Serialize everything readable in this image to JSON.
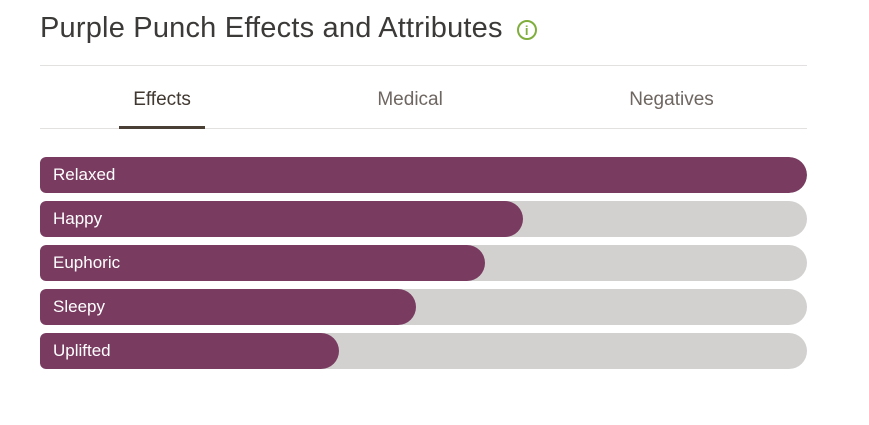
{
  "header": {
    "title": "Purple Punch Effects and Attributes",
    "info_icon": "i"
  },
  "tabs": [
    {
      "label": "Effects",
      "active": true
    },
    {
      "label": "Medical",
      "active": false
    },
    {
      "label": "Negatives",
      "active": false
    }
  ],
  "chart_data": {
    "type": "bar",
    "orientation": "horizontal",
    "title": "Purple Punch Effects and Attributes",
    "active_tab": "Effects",
    "categories": [
      "Relaxed",
      "Happy",
      "Euphoric",
      "Sleepy",
      "Uplifted"
    ],
    "values": [
      100,
      63,
      58,
      49,
      39
    ],
    "value_unit": "percent-of-max-width",
    "bar_color": "#7a3b61",
    "track_color": "#d2d1d0",
    "legend": "none",
    "grid": "off"
  },
  "colors": {
    "accent_purple": "#7a3b61",
    "track_gray": "#d2d1d0",
    "info_green": "#7fae3c",
    "active_tab_underline": "#4a3f35"
  }
}
